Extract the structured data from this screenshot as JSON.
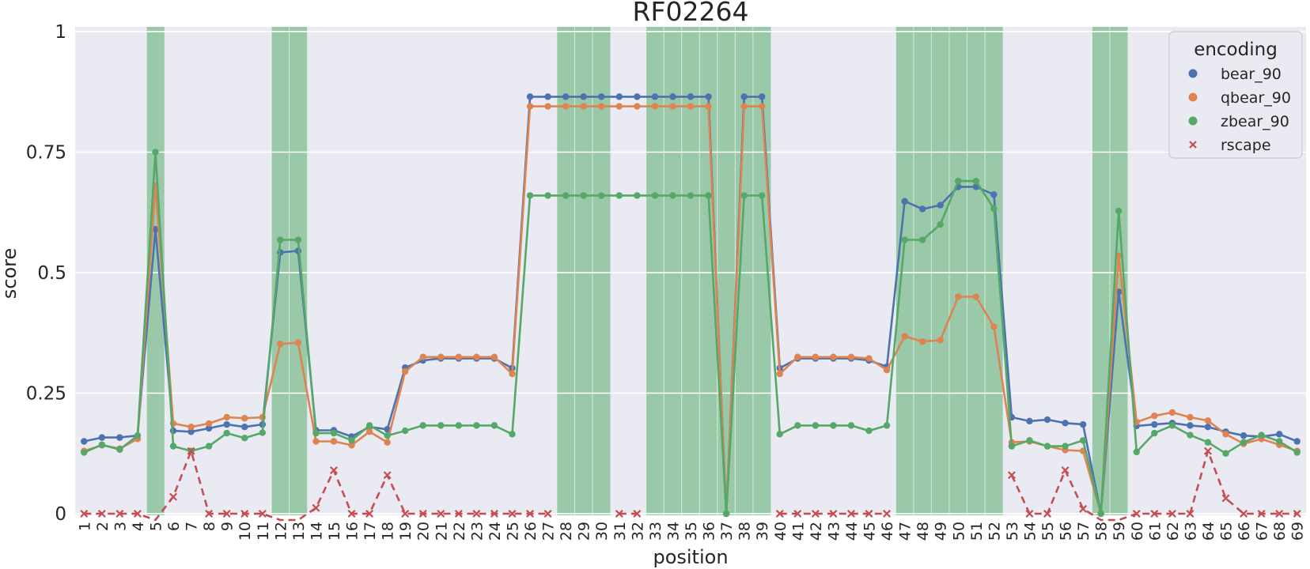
{
  "chart_data": {
    "type": "line",
    "title": "RF02264",
    "xlabel": "position",
    "ylabel": "score",
    "ylim": [
      0,
      1
    ],
    "y_ticks": [
      0,
      0.25,
      0.5,
      0.75,
      1
    ],
    "y_tick_labels": [
      "0",
      "0.25",
      "0.5",
      "0.75",
      "1"
    ],
    "grid": true,
    "legend": {
      "title": "encoding",
      "placement": "top-right"
    },
    "x": [
      1,
      2,
      3,
      4,
      5,
      6,
      7,
      8,
      9,
      10,
      11,
      12,
      13,
      14,
      15,
      16,
      17,
      18,
      19,
      20,
      21,
      22,
      23,
      24,
      25,
      26,
      27,
      28,
      29,
      30,
      31,
      32,
      33,
      34,
      35,
      36,
      37,
      38,
      39,
      40,
      41,
      42,
      43,
      44,
      45,
      46,
      47,
      48,
      49,
      50,
      51,
      52,
      53,
      54,
      55,
      56,
      57,
      58,
      59,
      60,
      61,
      62,
      63,
      64,
      65,
      66,
      67,
      68,
      69
    ],
    "highlighted_positions": [
      5,
      12,
      13,
      28,
      29,
      30,
      33,
      34,
      35,
      36,
      37,
      38,
      39,
      47,
      48,
      49,
      50,
      51,
      52,
      58,
      59
    ],
    "highlight_color": "#86c196",
    "series": [
      {
        "name": "bear_90",
        "color": "#4c72b0",
        "marker": "circle",
        "style": "solid",
        "values": [
          0.15,
          0.158,
          0.158,
          0.162,
          0.59,
          0.172,
          0.17,
          0.177,
          0.185,
          0.18,
          0.185,
          0.542,
          0.545,
          0.173,
          0.173,
          0.16,
          0.18,
          0.175,
          0.303,
          0.318,
          0.322,
          0.322,
          0.322,
          0.322,
          0.302,
          0.865,
          0.865,
          0.865,
          0.865,
          0.865,
          0.865,
          0.865,
          0.865,
          0.865,
          0.865,
          0.865,
          0.0,
          0.865,
          0.865,
          0.302,
          0.322,
          0.322,
          0.322,
          0.322,
          0.318,
          0.305,
          0.648,
          0.632,
          0.64,
          0.678,
          0.678,
          0.662,
          0.2,
          0.192,
          0.195,
          0.188,
          0.185,
          0.0,
          0.46,
          0.182,
          0.185,
          0.188,
          0.183,
          0.18,
          0.17,
          0.162,
          0.16,
          0.165,
          0.15
        ]
      },
      {
        "name": "qbear_90",
        "color": "#dd8452",
        "marker": "circle",
        "style": "solid",
        "values": [
          0.13,
          0.142,
          0.135,
          0.155,
          0.68,
          0.187,
          0.18,
          0.187,
          0.2,
          0.198,
          0.2,
          0.352,
          0.355,
          0.15,
          0.15,
          0.142,
          0.17,
          0.148,
          0.295,
          0.325,
          0.325,
          0.325,
          0.325,
          0.325,
          0.29,
          0.845,
          0.845,
          0.845,
          0.845,
          0.845,
          0.845,
          0.845,
          0.845,
          0.845,
          0.845,
          0.845,
          0.0,
          0.845,
          0.845,
          0.29,
          0.325,
          0.325,
          0.325,
          0.325,
          0.322,
          0.298,
          0.368,
          0.357,
          0.36,
          0.45,
          0.45,
          0.388,
          0.148,
          0.15,
          0.14,
          0.132,
          0.13,
          0.0,
          0.535,
          0.19,
          0.203,
          0.21,
          0.2,
          0.193,
          0.165,
          0.145,
          0.155,
          0.143,
          0.13
        ]
      },
      {
        "name": "zbear_90",
        "color": "#55a868",
        "marker": "circle",
        "style": "solid",
        "values": [
          0.127,
          0.143,
          0.133,
          0.162,
          0.75,
          0.14,
          0.13,
          0.14,
          0.167,
          0.157,
          0.168,
          0.568,
          0.568,
          0.167,
          0.167,
          0.152,
          0.183,
          0.162,
          0.172,
          0.183,
          0.183,
          0.183,
          0.183,
          0.183,
          0.165,
          0.66,
          0.66,
          0.66,
          0.66,
          0.66,
          0.66,
          0.66,
          0.66,
          0.66,
          0.66,
          0.66,
          0.0,
          0.66,
          0.66,
          0.165,
          0.183,
          0.183,
          0.183,
          0.183,
          0.172,
          0.183,
          0.568,
          0.568,
          0.6,
          0.69,
          0.69,
          0.633,
          0.14,
          0.152,
          0.14,
          0.14,
          0.152,
          0.0,
          0.628,
          0.128,
          0.167,
          0.183,
          0.163,
          0.148,
          0.125,
          0.148,
          0.163,
          0.15,
          0.127
        ]
      },
      {
        "name": "rscape",
        "color": "#c44e52",
        "marker": "x",
        "style": "dashed",
        "values": [
          0,
          0,
          0,
          0,
          -0.1,
          0.035,
          0.13,
          0,
          0,
          0,
          0,
          -0.1,
          -0.1,
          0.012,
          0.09,
          0,
          0,
          0.08,
          0,
          0,
          0,
          0,
          0,
          0,
          0,
          0,
          0,
          null,
          null,
          null,
          0,
          0,
          null,
          null,
          null,
          null,
          null,
          null,
          null,
          0,
          0,
          0,
          0,
          0,
          0,
          0,
          null,
          null,
          null,
          null,
          null,
          null,
          0.08,
          0,
          0,
          0.09,
          0.01,
          -0.1,
          -0.1,
          0,
          0,
          0,
          0,
          0.13,
          0.032,
          0,
          0,
          0,
          0
        ]
      }
    ]
  }
}
